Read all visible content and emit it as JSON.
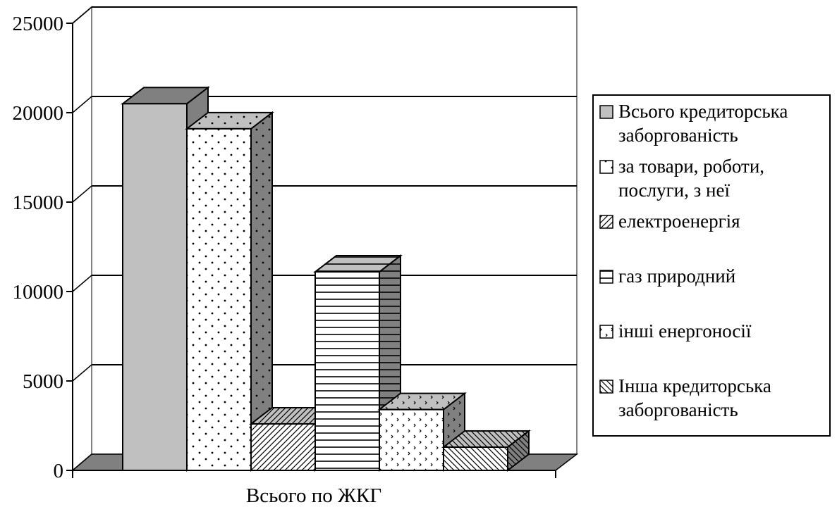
{
  "chart_data": {
    "type": "bar",
    "categories": [
      "Всього по ЖКГ"
    ],
    "series": [
      {
        "name": "Всього кредиторська заборгованість",
        "values": [
          20500
        ],
        "pattern": "solid",
        "color": "#c0c0c0"
      },
      {
        "name": "за товари, роботи, послуги, з неї",
        "values": [
          19100
        ],
        "pattern": "dots",
        "color": "#ffffff"
      },
      {
        "name": "електроенергія",
        "values": [
          2600
        ],
        "pattern": "diag-up",
        "color": "#ffffff"
      },
      {
        "name": "газ природний",
        "values": [
          11100
        ],
        "pattern": "hlines",
        "color": "#ffffff"
      },
      {
        "name": "інші енергоносії",
        "values": [
          3400
        ],
        "pattern": "chevrons",
        "color": "#ffffff"
      },
      {
        "name": "Інша кредиторська заборгованість",
        "values": [
          1300
        ],
        "pattern": "diag-down",
        "color": "#ffffff"
      }
    ],
    "yticks": [
      "0",
      "5000",
      "10000",
      "15000",
      "20000",
      "25000"
    ],
    "ylim": [
      0,
      25000
    ],
    "title": "",
    "xlabel": "",
    "ylabel": "",
    "grid": true,
    "legend_position": "right",
    "three_d": true
  }
}
